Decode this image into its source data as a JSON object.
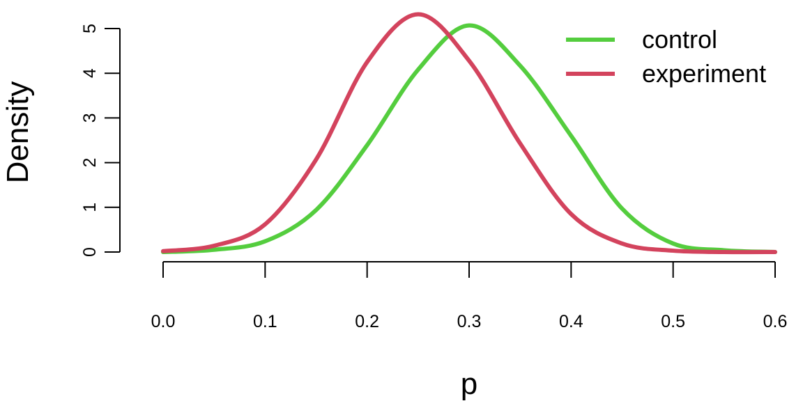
{
  "chart_data": {
    "type": "line",
    "title": "",
    "xlabel": "p",
    "ylabel": "Density",
    "xlim": [
      0,
      0.6
    ],
    "ylim": [
      0,
      5
    ],
    "xticks": [
      0.0,
      0.1,
      0.2,
      0.3,
      0.4,
      0.5,
      0.6
    ],
    "xtick_labels": [
      "0.0",
      "0.1",
      "0.2",
      "0.3",
      "0.4",
      "0.5",
      "0.6"
    ],
    "yticks": [
      0,
      1,
      2,
      3,
      4,
      5
    ],
    "ytick_labels": [
      "0",
      "1",
      "2",
      "3",
      "4",
      "5"
    ],
    "grid": false,
    "legend": "top-right",
    "x": [
      0.0,
      0.05,
      0.1,
      0.15,
      0.2,
      0.25,
      0.3,
      0.35,
      0.4,
      0.45,
      0.5,
      0.55,
      0.6
    ],
    "series": [
      {
        "name": "control",
        "color": "#54CD3E",
        "values": [
          0.0,
          0.05,
          0.24,
          0.94,
          2.39,
          4.08,
          5.07,
          4.17,
          2.6,
          0.97,
          0.19,
          0.04,
          0.0
        ]
      },
      {
        "name": "experiment",
        "color": "#D3435D",
        "values": [
          0.02,
          0.14,
          0.62,
          2.07,
          4.25,
          5.32,
          4.28,
          2.43,
          0.85,
          0.19,
          0.03,
          0.0,
          0.0
        ]
      }
    ]
  }
}
